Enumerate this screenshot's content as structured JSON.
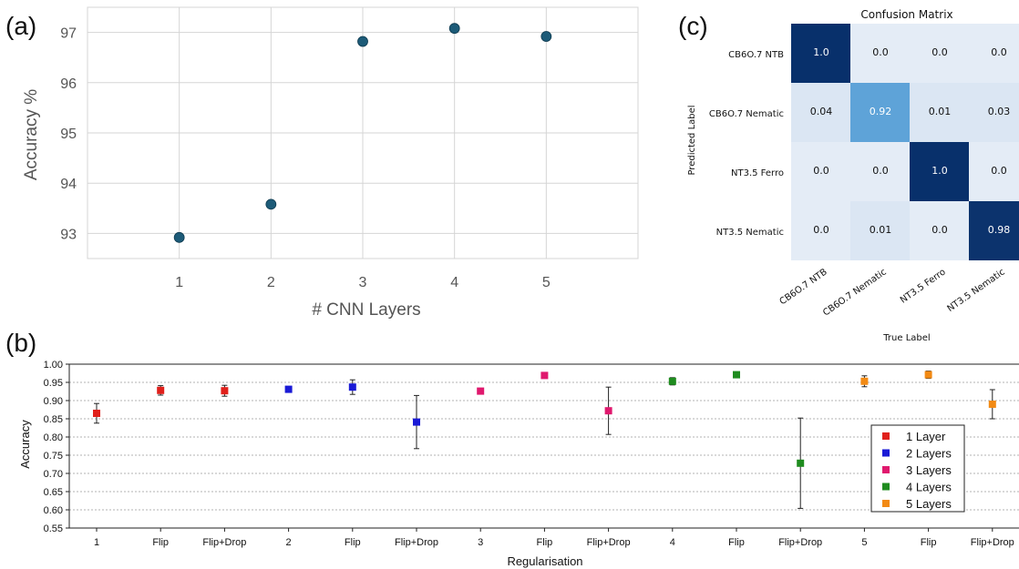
{
  "chart_data": [
    {
      "id": "a",
      "type": "scatter",
      "panel_label": "(a)",
      "xlabel": "# CNN Layers",
      "ylabel": "Accuracy %",
      "categories": [
        "1",
        "2",
        "3",
        "4",
        "5"
      ],
      "x": [
        1,
        2,
        3,
        4,
        5
      ],
      "values": [
        92.92,
        93.58,
        96.82,
        97.08,
        96.92
      ],
      "xlim": [
        0,
        6
      ],
      "ylim": [
        92.5,
        97.5
      ],
      "yticks": [
        93,
        94,
        95,
        96,
        97
      ],
      "grid": true,
      "color": "#1d5b78"
    },
    {
      "id": "b",
      "type": "scatter",
      "panel_label": "(b)",
      "xlabel": "Regularisation",
      "ylabel": "Accuracy",
      "categories": [
        "1",
        "Flip",
        "Flip+Drop",
        "2",
        "Flip",
        "Flip+Drop",
        "3",
        "Flip",
        "Flip+Drop",
        "4",
        "Flip",
        "Flip+Drop",
        "5",
        "Flip",
        "Flip+Drop"
      ],
      "ylim": [
        0.55,
        1.0
      ],
      "yticks": [
        "0.55",
        "0.60",
        "0.65",
        "0.70",
        "0.75",
        "0.80",
        "0.85",
        "0.90",
        "0.95",
        "1.00"
      ],
      "grid": true,
      "legend_position": "right",
      "series": [
        {
          "name": "1 Layer",
          "color": "#e0201b",
          "x": [
            0,
            1,
            2
          ],
          "values": [
            0.865,
            0.928,
            0.927
          ],
          "err": [
            0.027,
            0.013,
            0.015
          ]
        },
        {
          "name": "2 Layers",
          "color": "#1a1ad6",
          "x": [
            3,
            4,
            5
          ],
          "values": [
            0.931,
            0.937,
            0.841
          ],
          "err": [
            0.0,
            0.02,
            0.073
          ]
        },
        {
          "name": "3 Layers",
          "color": "#e0196e",
          "x": [
            6,
            7,
            8
          ],
          "values": [
            0.926,
            0.969,
            0.872
          ],
          "err": [
            0.0,
            0.0,
            0.065
          ]
        },
        {
          "name": "4 Layers",
          "color": "#1f8c1f",
          "x": [
            9,
            10,
            11
          ],
          "values": [
            0.953,
            0.971,
            0.728
          ],
          "err": [
            0.01,
            0.0,
            0.124
          ]
        },
        {
          "name": "5 Layers",
          "color": "#f28a14",
          "x": [
            12,
            13,
            14
          ],
          "values": [
            0.953,
            0.971,
            0.89
          ],
          "err": [
            0.015,
            0.01,
            0.04
          ]
        }
      ]
    },
    {
      "id": "c",
      "type": "heatmap",
      "panel_label": "(c)",
      "title": "Confusion Matrix",
      "xlabel": "True Label",
      "ylabel": "Predicted Label",
      "row_labels": [
        "CB6O.7 NTB",
        "CB6O.7 Nematic",
        "NT3.5 Ferro",
        "NT3.5 Nematic"
      ],
      "col_labels": [
        "CB6O.7 NTB",
        "CB6O.7 Nematic",
        "NT3.5 Ferro",
        "NT3.5 Nematic"
      ],
      "values": [
        [
          1.0,
          0.0,
          0.0,
          0.0
        ],
        [
          0.04,
          0.92,
          0.01,
          0.03
        ],
        [
          0.0,
          0.0,
          1.0,
          0.0
        ],
        [
          0.0,
          0.01,
          0.0,
          0.98
        ]
      ],
      "labels": [
        [
          "1.0",
          "0.0",
          "0.0",
          "0.0"
        ],
        [
          "0.04",
          "0.92",
          "0.01",
          "0.03"
        ],
        [
          "0.0",
          "0.0",
          "1.0",
          "0.0"
        ],
        [
          "0.0",
          "0.01",
          "0.0",
          "0.98"
        ]
      ]
    }
  ]
}
